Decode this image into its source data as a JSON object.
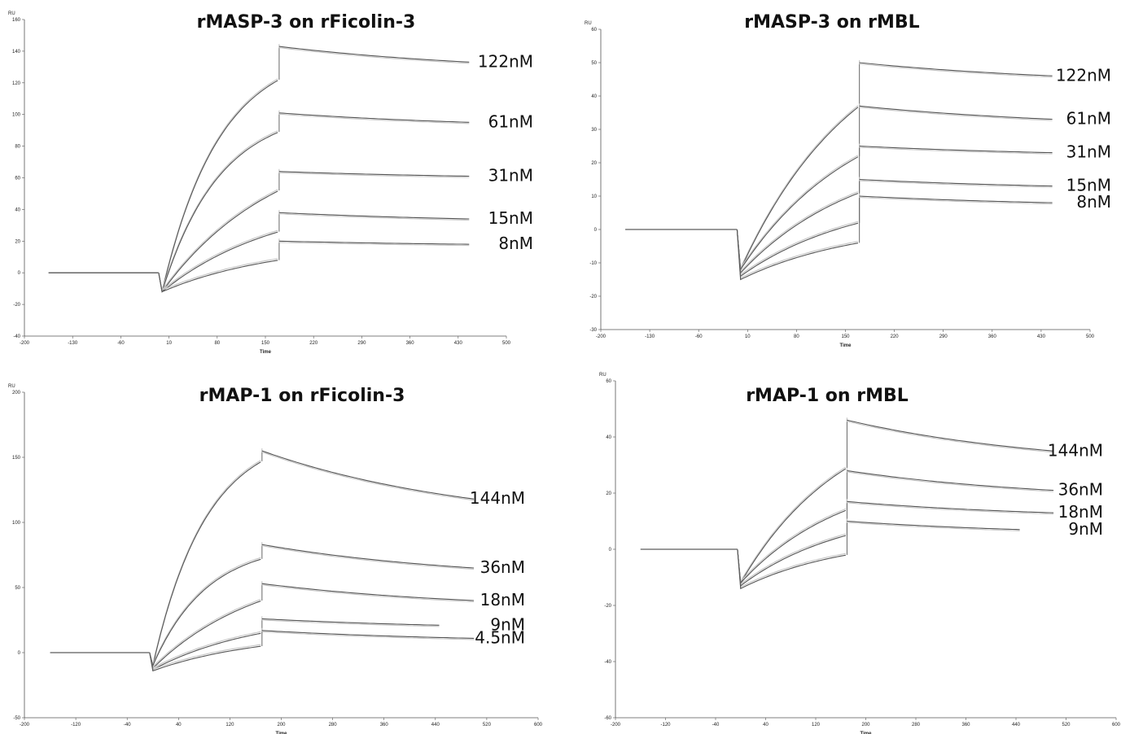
{
  "chart_data": [
    {
      "type": "line",
      "title": "rMASP-3 on rFicolin-3",
      "xlabel": "Time",
      "ylabel": "RU",
      "xlim": [
        -200,
        500
      ],
      "ylim": [
        -40,
        160
      ],
      "xticks": [
        -200,
        -130,
        -60,
        10,
        80,
        150,
        220,
        290,
        360,
        430,
        500
      ],
      "yticks": [
        -40,
        -20,
        0,
        20,
        40,
        60,
        80,
        100,
        120,
        140,
        160
      ],
      "grid": false,
      "injection_start": 0,
      "injection_end": 170,
      "series": [
        {
          "name": "122nM",
          "baseline": 0,
          "dip": -12,
          "assoc_end": 122,
          "peak": 143,
          "diss_end": 133,
          "end_time": 450
        },
        {
          "name": "61nM",
          "baseline": 0,
          "dip": -12,
          "assoc_end": 89,
          "peak": 101,
          "diss_end": 95,
          "end_time": 450
        },
        {
          "name": "31nM",
          "baseline": 0,
          "dip": -12,
          "assoc_end": 52,
          "peak": 64,
          "diss_end": 61,
          "end_time": 450
        },
        {
          "name": "15nM",
          "baseline": 0,
          "dip": -12,
          "assoc_end": 26,
          "peak": 38,
          "diss_end": 34,
          "end_time": 450
        },
        {
          "name": "8nM",
          "baseline": 0,
          "dip": -12,
          "assoc_end": 8,
          "peak": 20,
          "diss_end": 18,
          "end_time": 450
        }
      ]
    },
    {
      "type": "line",
      "title": "rMASP-3 on rMBL",
      "xlabel": "Time",
      "ylabel": "RU",
      "xlim": [
        -200,
        500
      ],
      "ylim": [
        -30,
        60
      ],
      "xticks": [
        -200,
        -130,
        -60,
        10,
        80,
        150,
        220,
        290,
        360,
        430,
        500
      ],
      "yticks": [
        -30,
        -20,
        -10,
        0,
        10,
        20,
        30,
        40,
        50,
        60
      ],
      "grid": false,
      "injection_start": 0,
      "injection_end": 170,
      "series": [
        {
          "name": "122nM",
          "baseline": 0,
          "dip": -12,
          "assoc_end": 37,
          "peak": 50,
          "diss_end": 46,
          "end_time": 450
        },
        {
          "name": "61nM",
          "baseline": 0,
          "dip": -12,
          "assoc_end": 22,
          "peak": 37,
          "diss_end": 33,
          "end_time": 450
        },
        {
          "name": "31nM",
          "baseline": 0,
          "dip": -13,
          "assoc_end": 11,
          "peak": 25,
          "diss_end": 23,
          "end_time": 450
        },
        {
          "name": "15nM",
          "baseline": 0,
          "dip": -14,
          "assoc_end": 2,
          "peak": 15,
          "diss_end": 13,
          "end_time": 450
        },
        {
          "name": "8nM",
          "baseline": 0,
          "dip": -15,
          "assoc_end": -4,
          "peak": 10,
          "diss_end": 8,
          "end_time": 450
        }
      ]
    },
    {
      "type": "line",
      "title": "rMAP-1 on rFicolin-3",
      "xlabel": "Time",
      "ylabel": "RU",
      "xlim": [
        -200,
        600
      ],
      "ylim": [
        -50,
        200
      ],
      "xticks": [
        -200,
        -120,
        -40,
        40,
        120,
        200,
        280,
        360,
        440,
        520,
        600
      ],
      "yticks": [
        -50,
        0,
        50,
        100,
        150,
        200
      ],
      "grid": false,
      "injection_start": 0,
      "injection_end": 170,
      "series": [
        {
          "name": "144nM",
          "baseline": 0,
          "dip": -10,
          "assoc_end": 147,
          "peak": 155,
          "diss_end": 118,
          "end_time": 500
        },
        {
          "name": "36nM",
          "baseline": 0,
          "dip": -10,
          "assoc_end": 72,
          "peak": 83,
          "diss_end": 65,
          "end_time": 500
        },
        {
          "name": "18nM",
          "baseline": 0,
          "dip": -12,
          "assoc_end": 40,
          "peak": 53,
          "diss_end": 40,
          "end_time": 500
        },
        {
          "name": "9nM",
          "baseline": 0,
          "dip": -13,
          "assoc_end": 15,
          "peak": 26,
          "diss_end": 21,
          "end_time": 450
        },
        {
          "name": "4.5nM",
          "baseline": 0,
          "dip": -14,
          "assoc_end": 5,
          "peak": 17,
          "diss_end": 11,
          "end_time": 500
        }
      ]
    },
    {
      "type": "line",
      "title": "rMAP-1 on rMBL",
      "xlabel": "Time",
      "ylabel": "RU",
      "xlim": [
        -200,
        600
      ],
      "ylim": [
        -60,
        60
      ],
      "xticks": [
        -200,
        -120,
        -40,
        40,
        120,
        200,
        280,
        360,
        440,
        520,
        600
      ],
      "yticks": [
        -60,
        -40,
        -20,
        0,
        20,
        40,
        60
      ],
      "grid": false,
      "injection_start": 0,
      "injection_end": 170,
      "series": [
        {
          "name": "144nM",
          "baseline": 0,
          "dip": -12,
          "assoc_end": 29,
          "peak": 46,
          "diss_end": 35,
          "end_time": 500
        },
        {
          "name": "36nM",
          "baseline": 0,
          "dip": -12,
          "assoc_end": 14,
          "peak": 28,
          "diss_end": 21,
          "end_time": 500
        },
        {
          "name": "18nM",
          "baseline": 0,
          "dip": -13,
          "assoc_end": 5,
          "peak": 17,
          "diss_end": 13,
          "end_time": 500
        },
        {
          "name": "9nM",
          "baseline": 0,
          "dip": -14,
          "assoc_end": -2,
          "peak": 10,
          "diss_end": 7,
          "end_time": 450
        }
      ]
    }
  ]
}
